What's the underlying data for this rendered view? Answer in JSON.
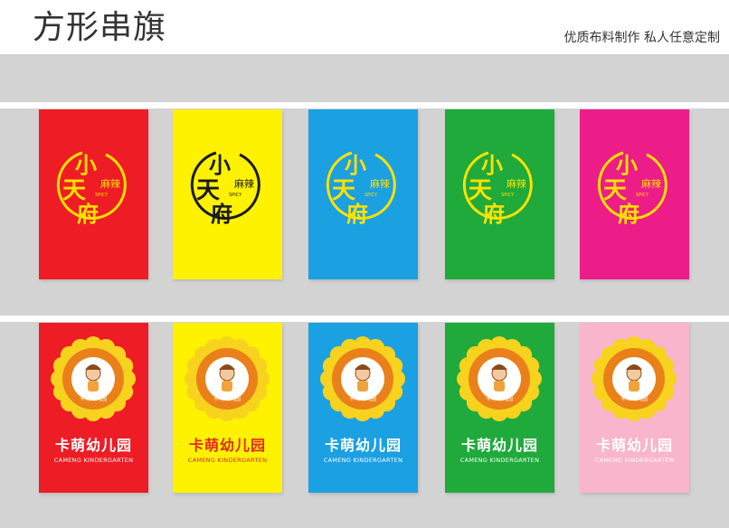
{
  "header": {
    "title": "方形串旗",
    "subtitle": "优质布料制作  私人任意定制"
  },
  "row1": {
    "logo_text": {
      "char1": "小",
      "char2": "天",
      "char3": "府",
      "side": "麻辣",
      "tag": "SPICY"
    },
    "flags": [
      {
        "color": "#ee1c25",
        "logo_color": "#ffe100"
      },
      {
        "color": "#fff200",
        "logo_color": "#1a1a1a"
      },
      {
        "color": "#1ba0e2",
        "logo_color": "#ffe100"
      },
      {
        "color": "#1faa3b",
        "logo_color": "#ffe100"
      },
      {
        "color": "#ec1c89",
        "logo_color": "#ffe100"
      }
    ]
  },
  "row2": {
    "kindergarten_name": "卡萌幼儿园",
    "kindergarten_en": "CAMENG KINDERGARTEN",
    "badge_text": "卡萌幼儿园",
    "flags": [
      {
        "color": "#ee1c25"
      },
      {
        "color": "#fff200"
      },
      {
        "color": "#1ba0e2"
      },
      {
        "color": "#1faa3b"
      },
      {
        "color": "#f8b5cc"
      }
    ]
  }
}
